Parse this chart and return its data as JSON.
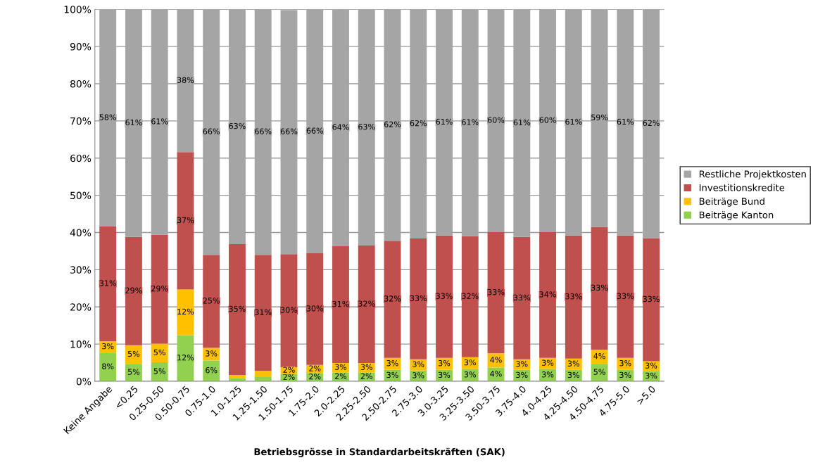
{
  "chart_data": {
    "type": "bar",
    "stacked": true,
    "xlabel": "Betriebsgrösse in Standardarbeitskräften (SAK)",
    "categories": [
      "Keine Angabe",
      "<0.25",
      "0.25-0.50",
      "0.50-0.75",
      "0.75-1.0",
      "1.0-1.25",
      "1.25-1.50",
      "1.50-1.75",
      "1.75-2.0",
      "2.0-2.25",
      "2.25-2.50",
      "2.50-2.75",
      "2.75-3.0",
      "3.0-3.25",
      "3.25-3.50",
      "3.50-3.75",
      "3.75-4.0",
      "4.0-4.25",
      "4.25-4.50",
      "4.50-4.75",
      "4.75-5.0",
      ">5.0"
    ],
    "series": [
      {
        "name": "Beiträge Kanton",
        "color": "#92d050",
        "values": [
          7.7,
          4.7,
          5.1,
          12.4,
          5.6,
          0.8,
          1.3,
          2.0,
          2.2,
          2.4,
          2.4,
          3.1,
          2.9,
          3.1,
          3.3,
          3.7,
          3.1,
          3.3,
          3.1,
          4.7,
          3.1,
          2.7
        ],
        "value_labels": [
          "8%",
          "5%",
          "5%",
          "12%",
          "6%",
          null,
          null,
          "2%",
          "2%",
          "2%",
          "2%",
          "3%",
          "3%",
          "3%",
          "3%",
          "4%",
          "3%",
          "3%",
          "3%",
          "5%",
          "3%",
          "3%"
        ]
      },
      {
        "name": "Beiträge Bund",
        "color": "#ffc000",
        "values": [
          3.1,
          5.0,
          5.0,
          12.3,
          3.4,
          0.9,
          1.5,
          1.8,
          2.2,
          2.5,
          2.5,
          3.2,
          3.0,
          3.2,
          3.2,
          3.8,
          2.8,
          3.0,
          3.0,
          3.8,
          3.2,
          2.7
        ],
        "value_labels": [
          "3%",
          "5%",
          "5%",
          "12%",
          "3%",
          null,
          null,
          "2%",
          "2%",
          "3%",
          "3%",
          "3%",
          "3%",
          "3%",
          "3%",
          "4%",
          "3%",
          "3%",
          "3%",
          "4%",
          "3%",
          "3%"
        ]
      },
      {
        "name": "Investitionskredite",
        "color": "#c0504d",
        "values": [
          30.8,
          29.1,
          29.3,
          36.9,
          25.0,
          35.2,
          31.2,
          30.4,
          30.0,
          31.4,
          31.6,
          31.5,
          32.5,
          32.9,
          32.5,
          32.6,
          32.9,
          33.8,
          33.1,
          33.0,
          32.9,
          33.1
        ],
        "value_labels": [
          "31%",
          "29%",
          "29%",
          "37%",
          "25%",
          "35%",
          "31%",
          "30%",
          "30%",
          "31%",
          "32%",
          "32%",
          "33%",
          "33%",
          "32%",
          "33%",
          "33%",
          "34%",
          "33%",
          "33%",
          "33%",
          "33%"
        ]
      },
      {
        "name": "Restliche Projektkosten",
        "color": "#a5a5a5",
        "values": [
          58.4,
          61.2,
          60.6,
          38.4,
          66.0,
          63.1,
          66.0,
          65.6,
          65.6,
          63.7,
          63.5,
          62.2,
          61.6,
          60.8,
          61.0,
          59.9,
          61.2,
          59.9,
          60.8,
          58.5,
          60.8,
          61.5
        ],
        "value_labels": [
          "58%",
          "61%",
          "61%",
          "38%",
          "66%",
          "63%",
          "66%",
          "66%",
          "66%",
          "64%",
          "63%",
          "62%",
          "62%",
          "61%",
          "61%",
          "60%",
          "61%",
          "60%",
          "61%",
          "59%",
          "61%",
          "62%"
        ]
      }
    ],
    "ylim": [
      0,
      100
    ],
    "yticks": [
      {
        "value": 0,
        "label": "0%"
      },
      {
        "value": 10,
        "label": "10%"
      },
      {
        "value": 20,
        "label": "20%"
      },
      {
        "value": 30,
        "label": "30%"
      },
      {
        "value": 40,
        "label": "40%"
      },
      {
        "value": 50,
        "label": "50%"
      },
      {
        "value": 60,
        "label": "60%"
      },
      {
        "value": 70,
        "label": "70%"
      },
      {
        "value": 80,
        "label": "80%"
      },
      {
        "value": 90,
        "label": "90%"
      },
      {
        "value": 100,
        "label": "100%"
      }
    ],
    "grid": "y",
    "legend": "right"
  }
}
